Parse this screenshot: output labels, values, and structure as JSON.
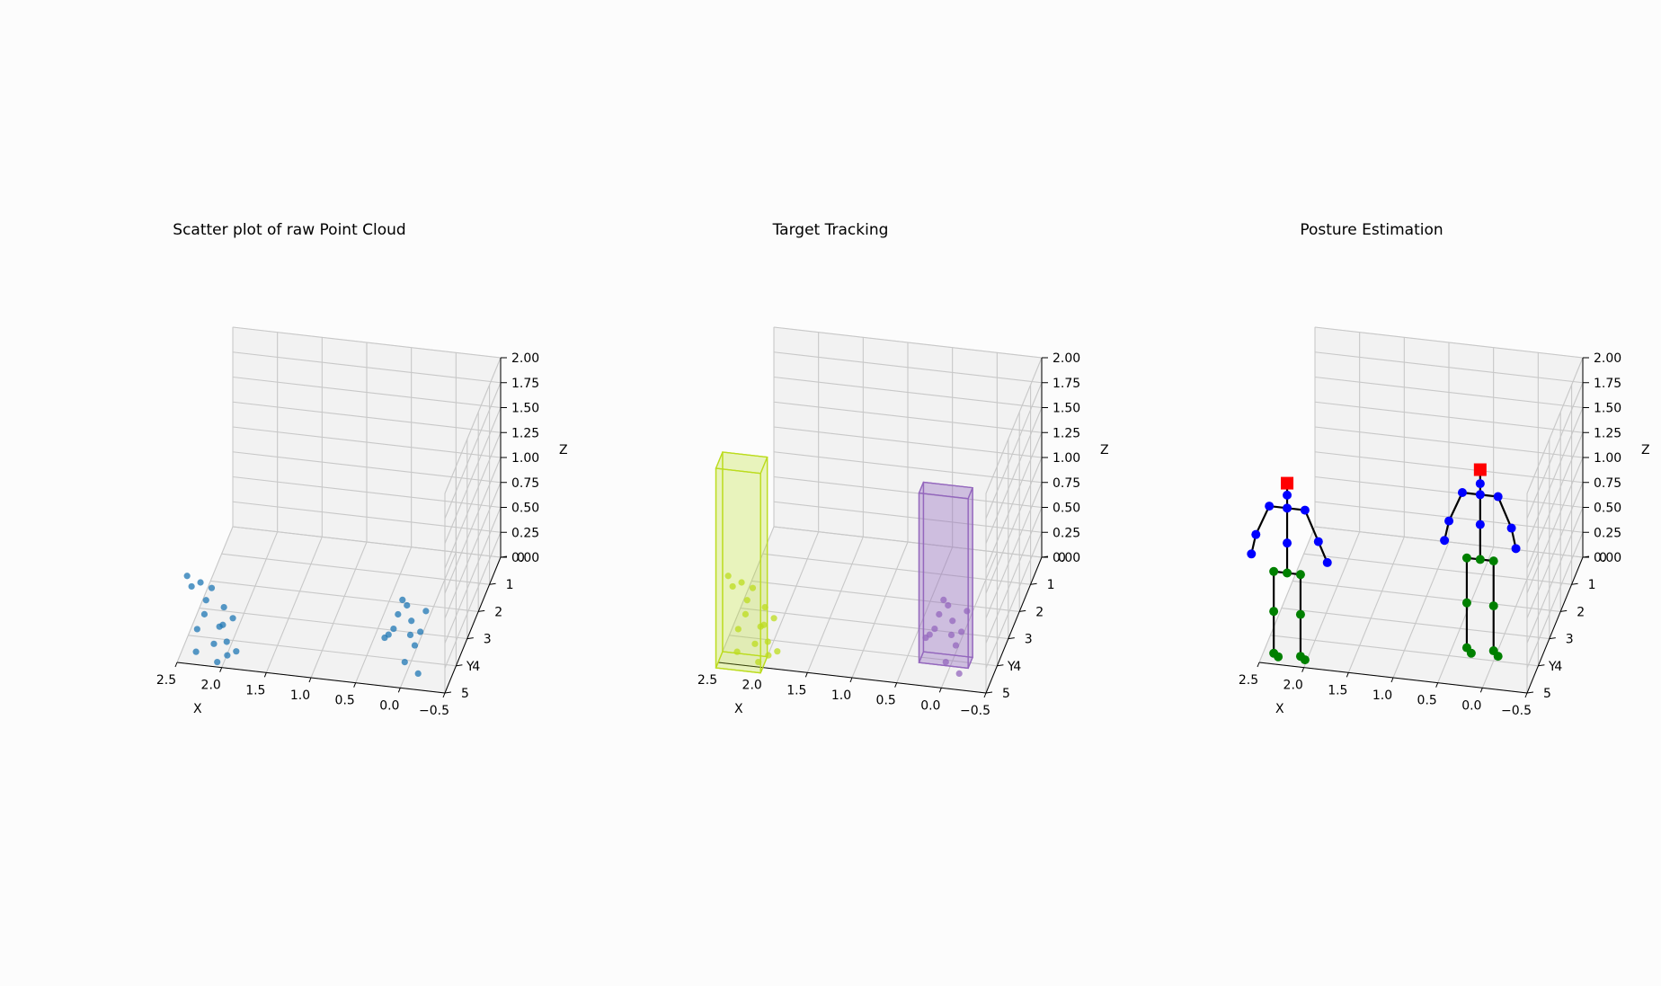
{
  "chart_data": [
    {
      "type": "scatter3d",
      "title": "Scatter plot of raw Point Cloud",
      "xlabel": "X",
      "ylabel": "Y",
      "zlabel": "Z",
      "x_ticks": [
        "2.5",
        "2.0",
        "1.5",
        "1.0",
        "0.5",
        "0.0",
        "−0.5"
      ],
      "y_ticks": [
        "0",
        "1",
        "2",
        "3",
        "4",
        "5"
      ],
      "z_ticks": [
        "0.00",
        "0.25",
        "0.50",
        "0.75",
        "1.00",
        "1.25",
        "1.50",
        "1.75",
        "2.00"
      ],
      "xlim": [
        -0.5,
        2.5
      ],
      "ylim": [
        0,
        5
      ],
      "zlim": [
        0,
        2
      ],
      "grid": true,
      "series": [
        {
          "color": "#1f77b4",
          "points": [
            [
              2.3,
              4.9,
              0.1
            ],
            [
              2.1,
              4.9,
              0.2
            ],
            [
              2.05,
              4.8,
              0.35
            ],
            [
              1.95,
              4.9,
              0.1
            ],
            [
              2.0,
              4.8,
              0.55
            ],
            [
              2.2,
              4.8,
              0.6
            ],
            [
              2.25,
              4.9,
              0.8
            ],
            [
              2.35,
              4.9,
              0.75
            ],
            [
              2.3,
              4.8,
              0.3
            ],
            [
              1.9,
              4.8,
              0.45
            ],
            [
              2.0,
              4.9,
              0.4
            ],
            [
              2.4,
              4.9,
              0.85
            ],
            [
              1.85,
              4.9,
              0.15
            ],
            [
              2.15,
              4.7,
              0.7
            ],
            [
              2.05,
              5.0,
              0.05
            ],
            [
              1.95,
              4.95,
              0.25
            ],
            [
              2.2,
              4.95,
              0.5
            ],
            [
              0.2,
              4.0,
              0.3
            ],
            [
              0.15,
              4.0,
              0.45
            ],
            [
              0.1,
              4.0,
              0.6
            ],
            [
              0.3,
              4.0,
              0.2
            ],
            [
              0.05,
              4.0,
              0.55
            ],
            [
              0.0,
              4.0,
              0.4
            ],
            [
              -0.1,
              4.0,
              0.3
            ],
            [
              0.25,
              4.05,
              0.25
            ],
            [
              0.0,
              4.6,
              0.15
            ],
            [
              -0.1,
              4.5,
              0.3
            ],
            [
              -0.15,
              4.6,
              0.05
            ],
            [
              -0.05,
              4.5,
              0.4
            ],
            [
              -0.2,
              4.3,
              0.6
            ]
          ]
        }
      ]
    },
    {
      "type": "scatter3d",
      "title": "Target Tracking",
      "xlabel": "X",
      "ylabel": "Y",
      "zlabel": "Z",
      "x_ticks": [
        "2.5",
        "2.0",
        "1.5",
        "1.0",
        "0.5",
        "0.0",
        "−0.5"
      ],
      "y_ticks": [
        "0",
        "1",
        "2",
        "3",
        "4",
        "5"
      ],
      "z_ticks": [
        "0.00",
        "0.25",
        "0.50",
        "0.75",
        "1.00",
        "1.25",
        "1.50",
        "1.75",
        "2.00"
      ],
      "xlim": [
        -0.5,
        2.5
      ],
      "ylim": [
        0,
        5
      ],
      "zlim": [
        0,
        2
      ],
      "grid": true,
      "boxes": [
        {
          "color": "#bcdc1e",
          "fill": "rgba(188,220,30,0.35)",
          "x": [
            2.0,
            2.5
          ],
          "y": [
            4.6,
            5.2
          ],
          "z": [
            0,
            2.0
          ]
        },
        {
          "color": "#9467bd",
          "fill": "rgba(148,103,189,0.45)",
          "x": [
            -0.2,
            0.35
          ],
          "y": [
            3.8,
            4.2
          ],
          "z": [
            0,
            1.7
          ]
        }
      ],
      "series": [
        {
          "color": "#bcdc1e",
          "points": [
            [
              2.3,
              4.9,
              0.1
            ],
            [
              2.1,
              4.9,
              0.2
            ],
            [
              2.05,
              4.8,
              0.35
            ],
            [
              1.95,
              4.9,
              0.1
            ],
            [
              2.0,
              4.8,
              0.55
            ],
            [
              2.2,
              4.8,
              0.6
            ],
            [
              2.25,
              4.9,
              0.8
            ],
            [
              2.35,
              4.9,
              0.75
            ],
            [
              2.3,
              4.8,
              0.3
            ],
            [
              1.9,
              4.8,
              0.45
            ],
            [
              2.0,
              4.9,
              0.4
            ],
            [
              2.4,
              4.9,
              0.85
            ],
            [
              1.85,
              4.9,
              0.15
            ],
            [
              2.15,
              4.7,
              0.7
            ],
            [
              2.05,
              5.0,
              0.05
            ],
            [
              1.95,
              4.95,
              0.25
            ],
            [
              2.2,
              4.95,
              0.5
            ]
          ]
        },
        {
          "color": "#9467bd",
          "points": [
            [
              0.2,
              4.0,
              0.3
            ],
            [
              0.15,
              4.0,
              0.45
            ],
            [
              0.1,
              4.0,
              0.6
            ],
            [
              0.3,
              4.0,
              0.2
            ],
            [
              0.05,
              4.0,
              0.55
            ],
            [
              0.0,
              4.0,
              0.4
            ],
            [
              -0.1,
              4.0,
              0.3
            ],
            [
              0.25,
              4.05,
              0.25
            ],
            [
              0.0,
              4.6,
              0.15
            ],
            [
              -0.1,
              4.5,
              0.3
            ],
            [
              -0.15,
              4.6,
              0.05
            ],
            [
              -0.05,
              4.5,
              0.4
            ],
            [
              -0.2,
              4.3,
              0.6
            ]
          ]
        }
      ]
    },
    {
      "type": "skeleton3d",
      "title": "Posture Estimation",
      "xlabel": "X",
      "ylabel": "Y",
      "zlabel": "Z",
      "x_ticks": [
        "2.5",
        "2.0",
        "1.5",
        "1.0",
        "0.5",
        "0.0",
        "−0.5"
      ],
      "y_ticks": [
        "0",
        "1",
        "2",
        "3",
        "4",
        "5"
      ],
      "z_ticks": [
        "0.00",
        "0.25",
        "0.50",
        "0.75",
        "1.00",
        "1.25",
        "1.50",
        "1.75",
        "2.00"
      ],
      "xlim": [
        -0.5,
        2.5
      ],
      "ylim": [
        0,
        5
      ],
      "zlim": [
        0,
        2
      ],
      "grid": true,
      "colors": {
        "head": "#ff0000",
        "upper": "#0000ff",
        "lower": "#008000",
        "bone": "#000000"
      },
      "skeletons": [
        {
          "joints": [
            [
              2.2,
              4.9,
              1.8
            ],
            [
              2.2,
              4.9,
              1.68
            ],
            [
              2.4,
              4.9,
              1.55
            ],
            [
              2.0,
              4.9,
              1.55
            ],
            [
              2.2,
              4.9,
              1.55
            ],
            [
              2.55,
              4.9,
              1.25
            ],
            [
              1.85,
              4.9,
              1.25
            ],
            [
              2.6,
              4.9,
              1.05
            ],
            [
              1.75,
              4.9,
              1.05
            ],
            [
              2.2,
              4.9,
              1.2
            ],
            [
              2.2,
              4.9,
              0.9
            ],
            [
              2.35,
              4.9,
              0.9
            ],
            [
              2.05,
              4.9,
              0.9
            ],
            [
              2.35,
              4.9,
              0.5
            ],
            [
              2.05,
              4.9,
              0.5
            ],
            [
              2.35,
              4.9,
              0.08
            ],
            [
              2.05,
              4.9,
              0.08
            ],
            [
              2.3,
              4.9,
              0.05
            ],
            [
              2.0,
              4.9,
              0.05
            ]
          ]
        },
        {
          "joints": [
            [
              0.15,
              4.0,
              1.9
            ],
            [
              0.15,
              4.0,
              1.76
            ],
            [
              0.35,
              4.0,
              1.65
            ],
            [
              -0.05,
              4.0,
              1.65
            ],
            [
              0.15,
              4.0,
              1.65
            ],
            [
              0.5,
              4.0,
              1.35
            ],
            [
              -0.2,
              4.0,
              1.35
            ],
            [
              0.55,
              4.0,
              1.15
            ],
            [
              -0.25,
              4.0,
              1.15
            ],
            [
              0.15,
              4.0,
              1.35
            ],
            [
              0.15,
              4.0,
              1.0
            ],
            [
              0.3,
              4.0,
              1.0
            ],
            [
              0.0,
              4.0,
              1.0
            ],
            [
              0.3,
              4.0,
              0.55
            ],
            [
              0.0,
              4.0,
              0.55
            ],
            [
              0.3,
              4.0,
              0.1
            ],
            [
              0.0,
              4.0,
              0.1
            ],
            [
              0.25,
              4.0,
              0.05
            ],
            [
              -0.05,
              4.0,
              0.05
            ]
          ]
        }
      ],
      "bones": [
        [
          0,
          1
        ],
        [
          1,
          4
        ],
        [
          4,
          2
        ],
        [
          4,
          3
        ],
        [
          2,
          5
        ],
        [
          5,
          7
        ],
        [
          3,
          6
        ],
        [
          6,
          8
        ],
        [
          4,
          9
        ],
        [
          9,
          10
        ],
        [
          10,
          11
        ],
        [
          10,
          12
        ],
        [
          11,
          13
        ],
        [
          13,
          15
        ],
        [
          15,
          17
        ],
        [
          12,
          14
        ],
        [
          14,
          16
        ],
        [
          16,
          18
        ]
      ]
    }
  ]
}
